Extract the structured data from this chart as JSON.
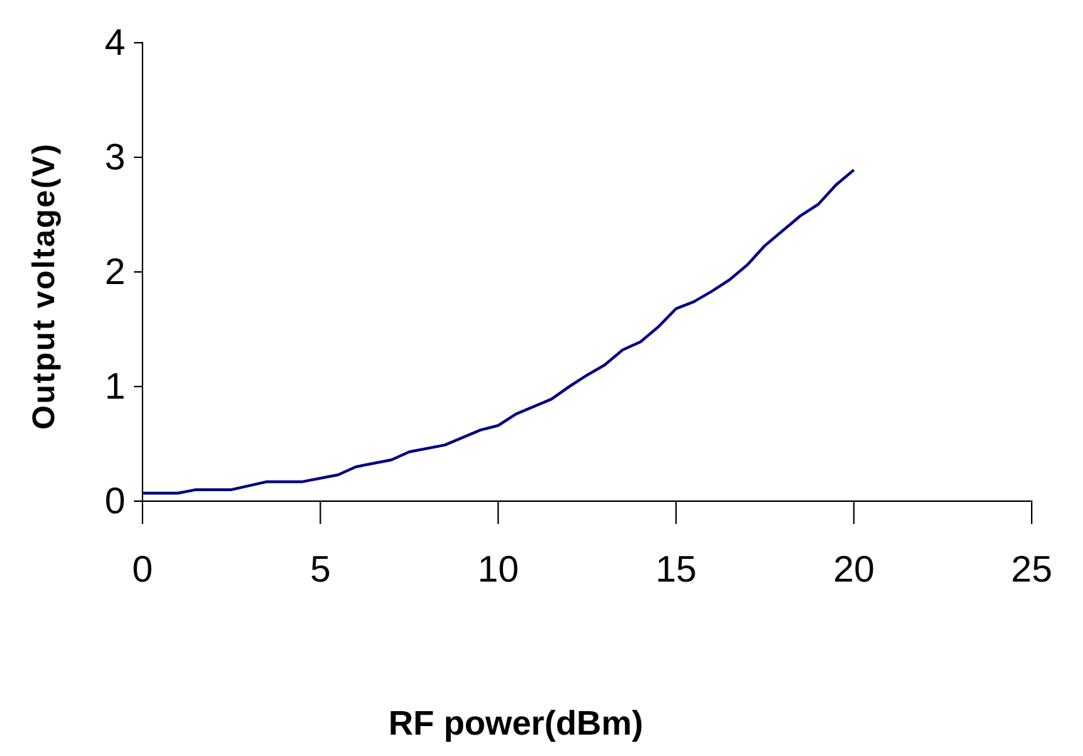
{
  "chart_data": {
    "type": "line",
    "xlabel": "RF power(dBm)",
    "ylabel": "Output voltage(V)",
    "xlim": [
      0,
      25
    ],
    "xticks": [
      0,
      5,
      10,
      15,
      20,
      25
    ],
    "ylim": [
      0,
      4
    ],
    "yticks": [
      0,
      1,
      2,
      3,
      4
    ],
    "grid": false,
    "marker": "none",
    "line_style": "solid",
    "series": [
      {
        "color": "#000080",
        "x": [
          0,
          1,
          1.5,
          2.5,
          3.5,
          4.5,
          5.5,
          6,
          7,
          7.5,
          8.5,
          9.5,
          10,
          10.5,
          11.5,
          12,
          12.5,
          13,
          13.5,
          14,
          14.5,
          15,
          15.5,
          16,
          16.5,
          17,
          17.5,
          18,
          18.5,
          19,
          19.5,
          20
        ],
        "values": [
          0.07,
          0.07,
          0.1,
          0.1,
          0.17,
          0.17,
          0.23,
          0.3,
          0.36,
          0.43,
          0.49,
          0.62,
          0.66,
          0.76,
          0.89,
          1.0,
          1.1,
          1.19,
          1.32,
          1.39,
          1.52,
          1.68,
          1.74,
          1.83,
          1.93,
          2.06,
          2.23,
          2.36,
          2.49,
          2.59,
          2.76,
          2.89
        ]
      }
    ]
  }
}
